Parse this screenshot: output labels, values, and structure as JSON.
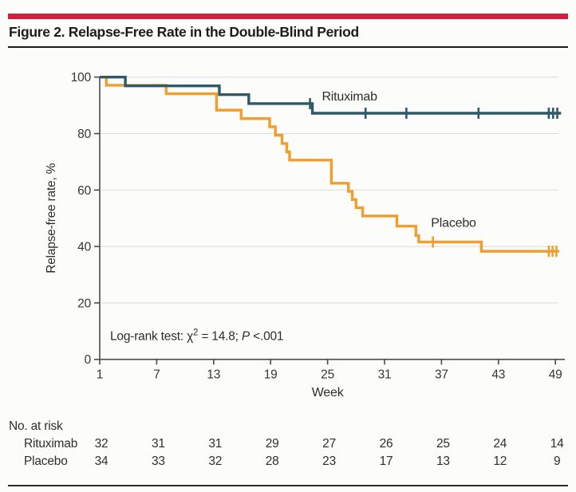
{
  "header": {
    "title": "Figure 2. Relapse-Free Rate in the Double-Blind Period"
  },
  "colors": {
    "accent_bar": "#D2203C",
    "title": "#1c1c1c",
    "rituximab": "#2E5966",
    "placebo": "#F19E2C",
    "grid": "#DCDCDC",
    "axis": "#4a4a4a",
    "tick_text": "#363636",
    "label_text": "#2d2d2d"
  },
  "chart_data": {
    "type": "line",
    "variant": "kaplan_meier_step",
    "title": "Figure 2. Relapse-Free Rate in the Double-Blind Period",
    "xlabel": "Week",
    "ylabel": "Relapse-free rate, %",
    "xlim": [
      1,
      49
    ],
    "ylim": [
      0,
      100
    ],
    "xticks": [
      1,
      7,
      13,
      19,
      25,
      31,
      37,
      43,
      49
    ],
    "yticks": [
      0,
      20,
      40,
      60,
      80,
      100
    ],
    "grid": "horizontal",
    "legend_position": "inline-labels",
    "annotation": {
      "text_plain": "Log-rank test: χ2 = 14.8; P <.001",
      "prefix": "Log-rank test: χ",
      "sup": "2",
      "mid": " = 14.8; ",
      "italic": "P",
      "suffix": " <.001"
    },
    "series": [
      {
        "name": "Rituximab",
        "color": "#2E5966",
        "final_value": 87.2,
        "steps": [
          [
            1,
            100
          ],
          [
            3.7,
            96.9
          ],
          [
            13.6,
            93.8
          ],
          [
            16.7,
            90.6
          ],
          [
            23.4,
            87.2
          ],
          [
            49.6,
            87.2
          ]
        ],
        "censor_ticks": [
          [
            23.15,
            90.6
          ],
          [
            29.0,
            87.2
          ],
          [
            33.3,
            87.2
          ],
          [
            40.9,
            87.2
          ],
          [
            48.3,
            87.2
          ],
          [
            48.75,
            87.2
          ],
          [
            49.2,
            87.2
          ]
        ]
      },
      {
        "name": "Placebo",
        "color": "#F19E2C",
        "final_value": 38.3,
        "steps": [
          [
            1,
            100
          ],
          [
            1.7,
            97.1
          ],
          [
            8.0,
            94.1
          ],
          [
            13.3,
            88.3
          ],
          [
            15.9,
            85.3
          ],
          [
            18.9,
            82.4
          ],
          [
            19.5,
            79.4
          ],
          [
            20.2,
            76.5
          ],
          [
            20.7,
            73.5
          ],
          [
            21.0,
            70.6
          ],
          [
            25.4,
            62.4
          ],
          [
            27.2,
            59.5
          ],
          [
            27.6,
            56.6
          ],
          [
            28.0,
            53.7
          ],
          [
            28.7,
            50.8
          ],
          [
            32.3,
            47.2
          ],
          [
            34.3,
            43.9
          ],
          [
            34.6,
            41.6
          ],
          [
            41.2,
            38.3
          ],
          [
            49.4,
            38.3
          ]
        ],
        "censor_ticks": [
          [
            36.1,
            41.6
          ],
          [
            48.3,
            38.3
          ],
          [
            48.7,
            38.3
          ],
          [
            49.1,
            38.3
          ]
        ]
      }
    ],
    "series_labels": [
      {
        "text": "Rituximab",
        "week": 24.4,
        "value": 91.7
      },
      {
        "text": "Placebo",
        "week": 35.9,
        "value": 46.9
      }
    ]
  },
  "risk_table": {
    "header": "No. at risk",
    "weeks": [
      1,
      7,
      13,
      19,
      25,
      31,
      37,
      43,
      49
    ],
    "rows": [
      {
        "label": "Rituximab",
        "values": [
          "32",
          "31",
          "31",
          "29",
          "27",
          "26",
          "25",
          "24",
          "14"
        ]
      },
      {
        "label": "Placebo",
        "values": [
          "34",
          "33",
          "32",
          "28",
          "23",
          "17",
          "13",
          "12",
          "9"
        ]
      }
    ]
  }
}
